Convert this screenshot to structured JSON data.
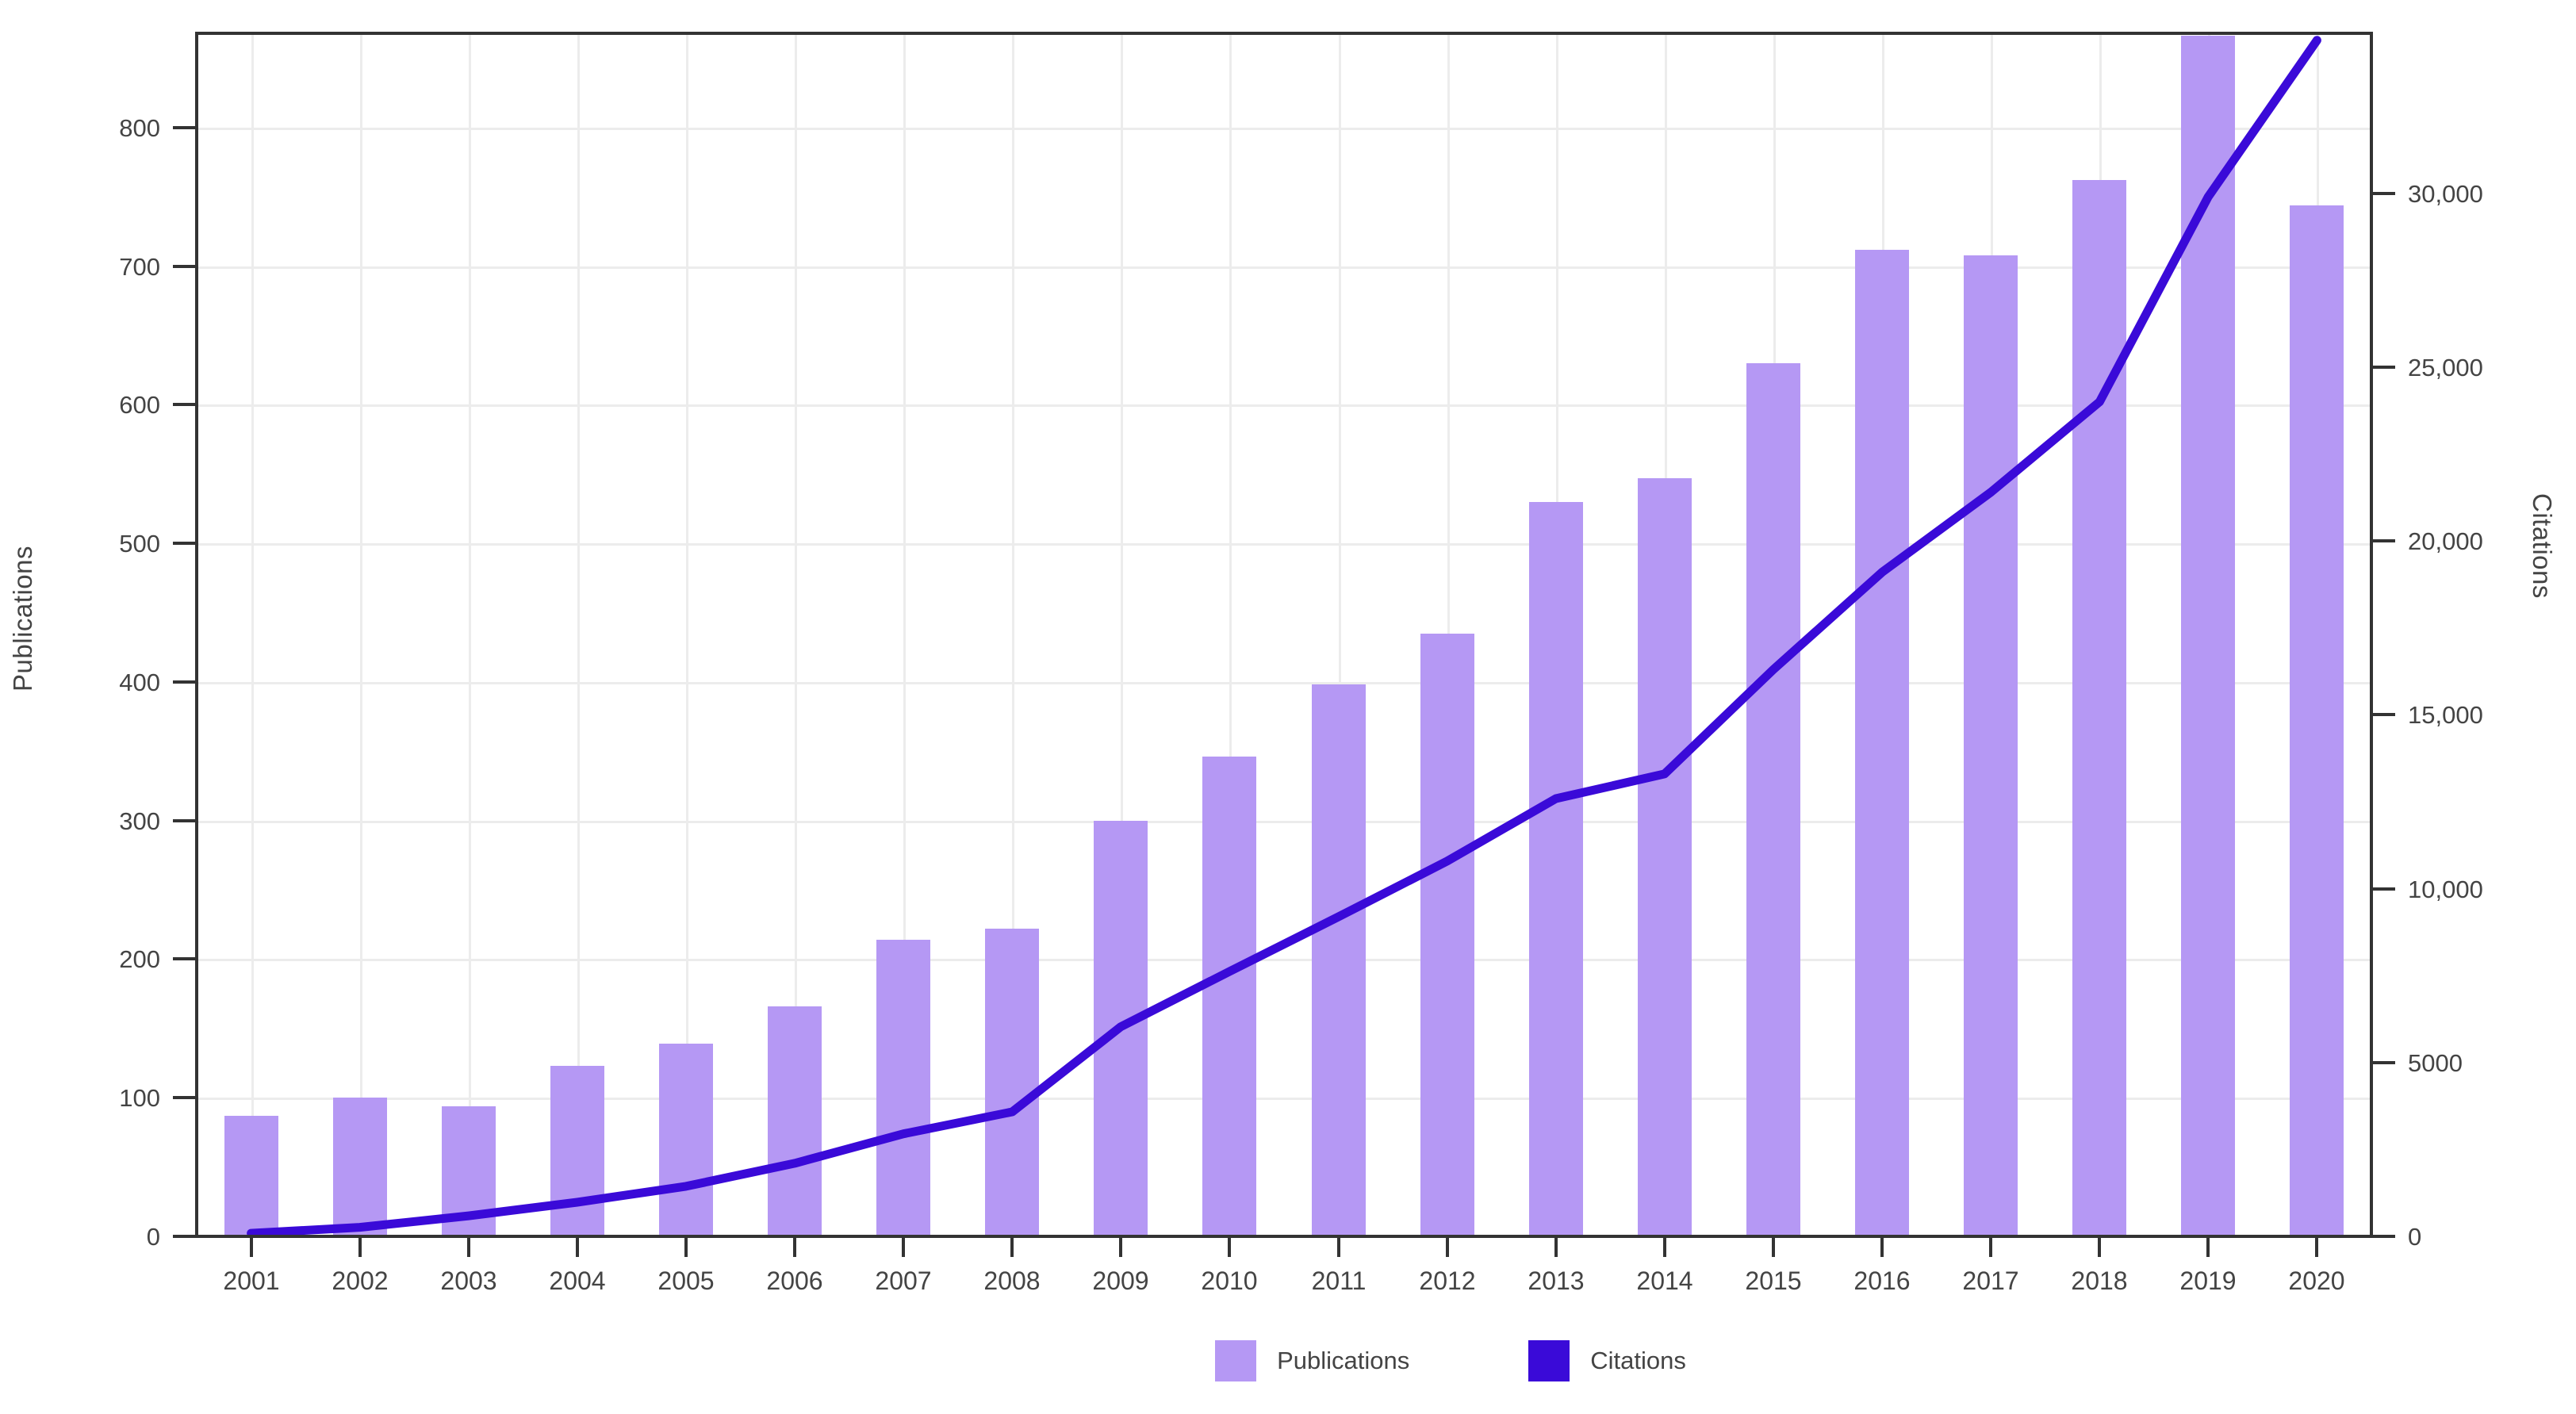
{
  "chart_data": {
    "type": "bar+line",
    "categories": [
      "2001",
      "2002",
      "2003",
      "2004",
      "2005",
      "2006",
      "2007",
      "2008",
      "2009",
      "2010",
      "2011",
      "2012",
      "2013",
      "2014",
      "2015",
      "2016",
      "2017",
      "2018",
      "2019",
      "2020"
    ],
    "series": [
      {
        "name": "Publications",
        "type": "bar",
        "axis": "left",
        "color": "#b598f4",
        "values": [
          87,
          100,
          94,
          123,
          139,
          166,
          214,
          222,
          300,
          346,
          398,
          435,
          530,
          547,
          630,
          712,
          708,
          762,
          866,
          744
        ]
      },
      {
        "name": "Citations",
        "type": "line",
        "axis": "right",
        "color": "#3a0ad8",
        "values": [
          90,
          260,
          590,
          980,
          1440,
          2100,
          2950,
          3580,
          6030,
          7620,
          9190,
          10790,
          12590,
          13300,
          16300,
          19100,
          21400,
          24000,
          29900,
          34400
        ]
      }
    ],
    "left_axis": {
      "title": "Publications",
      "ticks": [
        0,
        100,
        200,
        300,
        400,
        500,
        600,
        700,
        800
      ],
      "tick_labels": [
        "0",
        "100",
        "200",
        "300",
        "400",
        "500",
        "600",
        "700",
        "800"
      ],
      "range": [
        0,
        868
      ]
    },
    "right_axis": {
      "title": "Citations",
      "ticks": [
        0,
        5000,
        10000,
        15000,
        20000,
        25000,
        30000
      ],
      "tick_labels": [
        "0",
        "5000",
        "10,000",
        "15,000",
        "20,000",
        "25,000",
        "30,000"
      ],
      "range": [
        0,
        34600
      ]
    },
    "legend": {
      "position": "bottom",
      "entries": [
        "Publications",
        "Citations"
      ]
    },
    "grid": true,
    "colors": {
      "bar": "#b598f4",
      "line": "#3a0ad8",
      "axis": "#333333",
      "grid": "#ececec",
      "text": "#444444",
      "background": "#ffffff"
    }
  }
}
